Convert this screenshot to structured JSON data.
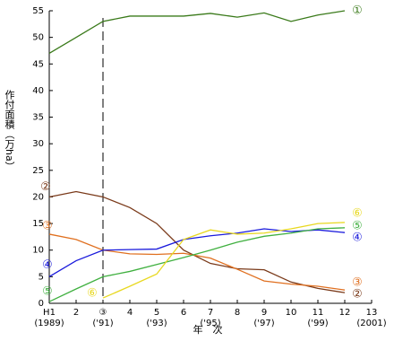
{
  "chart_data": {
    "type": "line",
    "y_label": "作付面積（万ha）",
    "x_label": "年　次",
    "xlim": [
      1,
      13
    ],
    "ylim": [
      0,
      55
    ],
    "xticks": [
      {
        "value": 1,
        "label": "H1",
        "year": "(1989)"
      },
      2,
      {
        "value": 3,
        "label": "③",
        "year": "('91)"
      },
      4,
      {
        "value": 5,
        "label": "5",
        "year": "('93)"
      },
      6,
      {
        "value": 7,
        "label": "7",
        "year": "('95)"
      },
      8,
      {
        "value": 9,
        "label": "9",
        "year": "('97)"
      },
      10,
      {
        "value": 11,
        "label": "11",
        "year": "('99)"
      },
      12,
      {
        "value": 13,
        "label": "13",
        "year": "(2001)"
      }
    ],
    "yticks": [
      0,
      5,
      10,
      15,
      20,
      25,
      30,
      35,
      40,
      45,
      50,
      55
    ],
    "reference_x": 3,
    "x": [
      1,
      2,
      3,
      4,
      5,
      6,
      7,
      8,
      9,
      10,
      11,
      12
    ],
    "series": [
      {
        "name": "①",
        "color": "#3a7a1a",
        "values": [
          47,
          50,
          53,
          54,
          54,
          54,
          54.5,
          53.8,
          54.6,
          53,
          54.2,
          55
        ]
      },
      {
        "name": "②",
        "color": "#7a3a1a",
        "values": [
          20,
          21,
          20,
          18,
          15,
          10,
          7.5,
          6.5,
          6.3,
          4,
          2.8,
          2
        ]
      },
      {
        "name": "③",
        "color": "#e07020",
        "values": [
          13,
          12,
          10,
          9.3,
          9.2,
          9.4,
          8.5,
          6.4,
          4.2,
          3.6,
          3.2,
          2.5
        ]
      },
      {
        "name": "④",
        "color": "#1a1adc",
        "values": [
          5,
          8,
          10,
          10.1,
          10.2,
          12,
          12.7,
          13.2,
          14,
          13.5,
          13.8,
          13.3
        ]
      },
      {
        "name": "⑤",
        "color": "#40b040",
        "values": [
          0.3,
          2.7,
          5,
          6,
          7.3,
          8.6,
          10,
          11.5,
          12.6,
          13.2,
          14,
          14.2
        ]
      },
      {
        "name": "⑥",
        "color": "#e8d820",
        "values": [
          null,
          null,
          1,
          3.2,
          5.5,
          12,
          13.8,
          13,
          13.2,
          14,
          15,
          15.2
        ]
      }
    ]
  }
}
